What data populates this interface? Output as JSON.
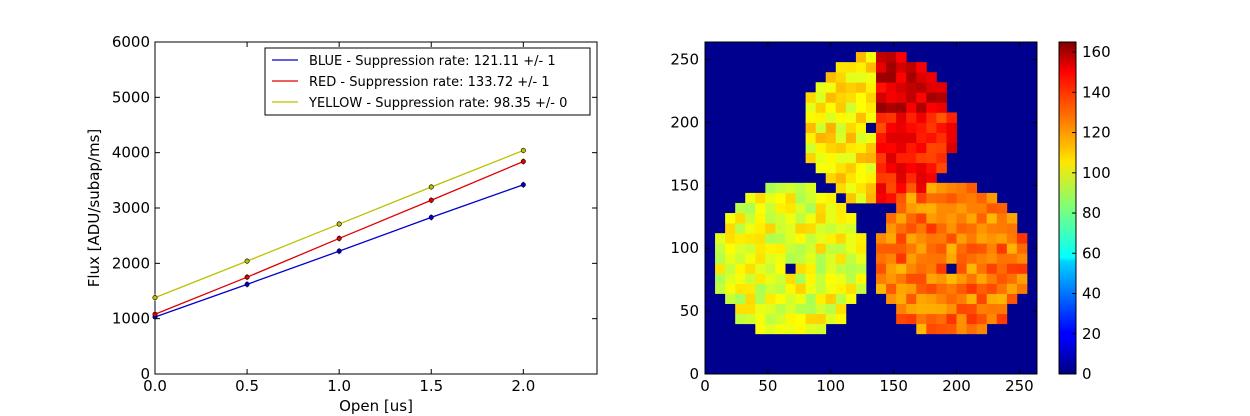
{
  "chart_data": [
    {
      "type": "line",
      "xlabel": "Open [us]",
      "ylabel": "Flux [ADU/subap/ms]",
      "xlim": [
        0,
        2.4
      ],
      "ylim": [
        0,
        6000
      ],
      "x_ticks": [
        "0.0",
        "0.5",
        "1.0",
        "1.5",
        "2.0"
      ],
      "y_ticks": [
        "0",
        "1000",
        "2000",
        "3000",
        "4000",
        "5000",
        "6000"
      ],
      "legend_position": "top-right",
      "series": [
        {
          "name": "BLUE - Suppression rate: 121.11 +/- 1",
          "color": "#0000cc",
          "x": [
            0.0,
            0.5,
            1.0,
            1.5,
            2.0
          ],
          "y": [
            1030,
            1620,
            2220,
            2830,
            3420
          ]
        },
        {
          "name": "RED - Suppression rate: 133.72 +/- 1",
          "color": "#e00000",
          "x": [
            0.0,
            0.5,
            1.0,
            1.5,
            2.0
          ],
          "y": [
            1080,
            1750,
            2450,
            3140,
            3840
          ]
        },
        {
          "name": "YELLOW - Suppression rate: 98.35 +/- 0",
          "color": "#bfbf00",
          "x": [
            0.0,
            0.5,
            1.0,
            1.5,
            2.0
          ],
          "y": [
            1380,
            2040,
            2710,
            3380,
            4040
          ]
        }
      ]
    },
    {
      "type": "heatmap",
      "xlim": [
        0,
        264
      ],
      "ylim": [
        0,
        264
      ],
      "x_ticks": [
        "0",
        "50",
        "100",
        "150",
        "200",
        "250"
      ],
      "y_ticks": [
        "0",
        "50",
        "100",
        "150",
        "200",
        "250"
      ],
      "colorbar": {
        "min": 0,
        "max": 165,
        "ticks": [
          "0",
          "20",
          "40",
          "60",
          "80",
          "100",
          "120",
          "140",
          "160"
        ]
      },
      "background_value": 0,
      "grid_cell_size": 8,
      "pupils": [
        {
          "center_x": 138,
          "center_y": 195,
          "radius": 60,
          "obscuration_x": 130,
          "obscuration_y": 198,
          "left_half_value": 105,
          "right_half_value": 140
        },
        {
          "center_x": 68,
          "center_y": 90,
          "radius": 61,
          "obscuration_x": 68,
          "obscuration_y": 82,
          "left_half_value": 100,
          "right_half_value": 100
        },
        {
          "center_x": 196,
          "center_y": 90,
          "radius": 61,
          "obscuration_x": 198,
          "obscuration_y": 84,
          "left_half_value": 125,
          "right_half_value": 125
        }
      ]
    }
  ]
}
